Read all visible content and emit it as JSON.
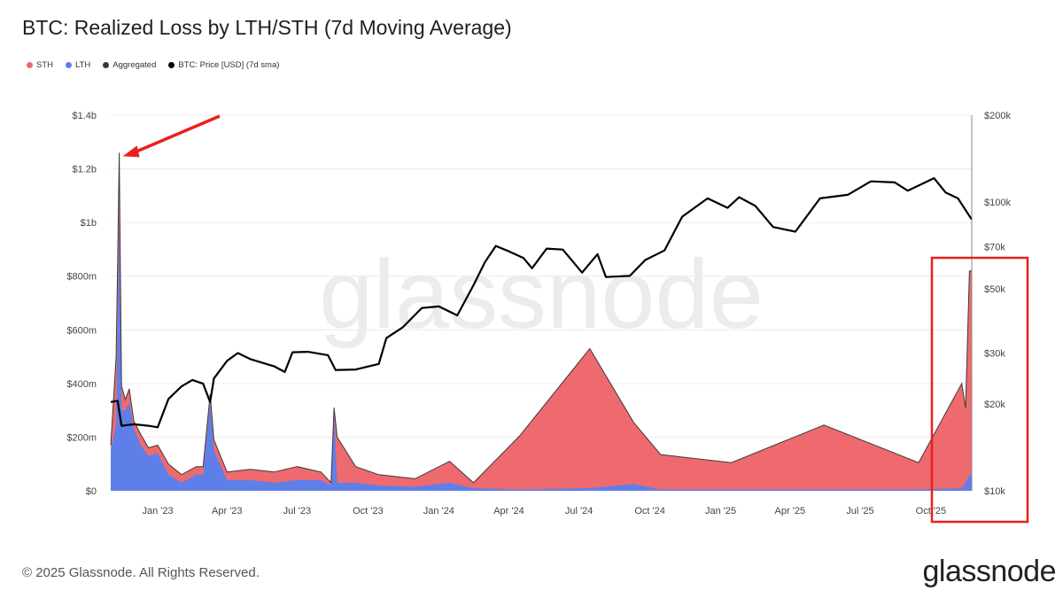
{
  "colors": {
    "sth": "#ee6a6e",
    "lth": "#5f7fe8",
    "aggregated": "#3a3a3a",
    "price": "#000000",
    "annotation": "#e8211c",
    "grid": "#ececec"
  },
  "footer": {
    "copyright": "© 2025 Glassnode. All Rights Reserved.",
    "brand": "glassnode"
  },
  "watermark": "glassnode",
  "chart_data": {
    "type": "area",
    "title": "BTC: Realized Loss by LTH/STH (7d Moving Average)",
    "legend_position": "top-left",
    "grid": true,
    "legend": [
      {
        "name": "STH",
        "color": "#ee6a6e"
      },
      {
        "name": "LTH",
        "color": "#5f7fe8"
      },
      {
        "name": "Aggregated",
        "color": "#3a3a3a"
      },
      {
        "name": "BTC: Price [USD] (7d sma)",
        "color": "#000000"
      }
    ],
    "x_range": [
      "2022-11-01",
      "2025-11-23"
    ],
    "x_ticks": [
      {
        "date": "2023-01-01",
        "label": "Jan '23"
      },
      {
        "date": "2023-04-01",
        "label": "Apr '23"
      },
      {
        "date": "2023-07-01",
        "label": "Jul '23"
      },
      {
        "date": "2023-10-01",
        "label": "Oct '23"
      },
      {
        "date": "2024-01-01",
        "label": "Jan '24"
      },
      {
        "date": "2024-04-01",
        "label": "Apr '24"
      },
      {
        "date": "2024-07-01",
        "label": "Jul '24"
      },
      {
        "date": "2024-10-01",
        "label": "Oct '24"
      },
      {
        "date": "2025-01-01",
        "label": "Jan '25"
      },
      {
        "date": "2025-04-01",
        "label": "Apr '25"
      },
      {
        "date": "2025-07-01",
        "label": "Jul '25"
      },
      {
        "date": "2025-10-01",
        "label": "Oct '25"
      }
    ],
    "y_left": {
      "range": [
        0,
        1400000000
      ],
      "ticks": [
        {
          "value": 0,
          "label": "$0"
        },
        {
          "value": 200000000,
          "label": "$200m"
        },
        {
          "value": 400000000,
          "label": "$400m"
        },
        {
          "value": 600000000,
          "label": "$600m"
        },
        {
          "value": 800000000,
          "label": "$800m"
        },
        {
          "value": 1000000000,
          "label": "$1b"
        },
        {
          "value": 1200000000,
          "label": "$1.2b"
        },
        {
          "value": 1400000000,
          "label": "$1.4b"
        }
      ]
    },
    "y_right": {
      "scale": "log",
      "range": [
        10000,
        200000
      ],
      "ticks": [
        {
          "value": 10000,
          "label": "$10k"
        },
        {
          "value": 20000,
          "label": "$20k"
        },
        {
          "value": 30000,
          "label": "$30k"
        },
        {
          "value": 50000,
          "label": "$50k"
        },
        {
          "value": 70000,
          "label": "$70k"
        },
        {
          "value": 100000,
          "label": "$100k"
        },
        {
          "value": 200000,
          "label": "$200k"
        }
      ]
    },
    "series": [
      {
        "name": "LTH",
        "points": [
          [
            "2022-11-01",
            150000000
          ],
          [
            "2022-11-08",
            250000000
          ],
          [
            "2022-11-10",
            600000000
          ],
          [
            "2022-11-12",
            1000000000
          ],
          [
            "2022-11-15",
            300000000
          ],
          [
            "2022-11-20",
            300000000
          ],
          [
            "2022-11-25",
            330000000
          ],
          [
            "2022-12-01",
            230000000
          ],
          [
            "2022-12-10",
            170000000
          ],
          [
            "2022-12-20",
            130000000
          ],
          [
            "2023-01-01",
            140000000
          ],
          [
            "2023-01-15",
            60000000
          ],
          [
            "2023-02-01",
            30000000
          ],
          [
            "2023-02-20",
            60000000
          ],
          [
            "2023-03-01",
            60000000
          ],
          [
            "2023-03-10",
            330000000
          ],
          [
            "2023-03-15",
            150000000
          ],
          [
            "2023-04-01",
            40000000
          ],
          [
            "2023-05-01",
            40000000
          ],
          [
            "2023-06-01",
            30000000
          ],
          [
            "2023-07-01",
            40000000
          ],
          [
            "2023-08-01",
            40000000
          ],
          [
            "2023-08-14",
            20000000
          ],
          [
            "2023-08-18",
            300000000
          ],
          [
            "2023-08-22",
            30000000
          ],
          [
            "2023-09-15",
            30000000
          ],
          [
            "2023-10-15",
            20000000
          ],
          [
            "2023-12-01",
            15000000
          ],
          [
            "2024-01-15",
            30000000
          ],
          [
            "2024-02-15",
            10000000
          ],
          [
            "2024-04-15",
            5000000
          ],
          [
            "2024-07-15",
            10000000
          ],
          [
            "2024-09-10",
            25000000
          ],
          [
            "2024-10-15",
            5000000
          ],
          [
            "2025-01-15",
            5000000
          ],
          [
            "2025-05-15",
            5000000
          ],
          [
            "2025-09-15",
            5000000
          ],
          [
            "2025-11-10",
            10000000
          ],
          [
            "2025-11-15",
            30000000
          ],
          [
            "2025-11-20",
            60000000
          ],
          [
            "2025-11-23",
            60000000
          ]
        ]
      },
      {
        "name": "STH",
        "points": [
          [
            "2022-11-01",
            20000000
          ],
          [
            "2022-11-08",
            250000000
          ],
          [
            "2022-11-10",
            250000000
          ],
          [
            "2022-11-12",
            260000000
          ],
          [
            "2022-11-15",
            90000000
          ],
          [
            "2022-11-20",
            40000000
          ],
          [
            "2022-11-25",
            50000000
          ],
          [
            "2022-12-01",
            30000000
          ],
          [
            "2022-12-10",
            40000000
          ],
          [
            "2022-12-20",
            30000000
          ],
          [
            "2023-01-01",
            30000000
          ],
          [
            "2023-01-15",
            40000000
          ],
          [
            "2023-02-01",
            30000000
          ],
          [
            "2023-02-20",
            30000000
          ],
          [
            "2023-03-01",
            30000000
          ],
          [
            "2023-03-10",
            30000000
          ],
          [
            "2023-03-15",
            40000000
          ],
          [
            "2023-04-01",
            30000000
          ],
          [
            "2023-05-01",
            40000000
          ],
          [
            "2023-06-01",
            40000000
          ],
          [
            "2023-07-01",
            50000000
          ],
          [
            "2023-08-01",
            30000000
          ],
          [
            "2023-08-14",
            10000000
          ],
          [
            "2023-08-18",
            10000000
          ],
          [
            "2023-08-22",
            170000000
          ],
          [
            "2023-09-15",
            60000000
          ],
          [
            "2023-10-15",
            40000000
          ],
          [
            "2023-12-01",
            30000000
          ],
          [
            "2024-01-15",
            80000000
          ],
          [
            "2024-02-15",
            20000000
          ],
          [
            "2024-04-15",
            200000000
          ],
          [
            "2024-07-15",
            520000000
          ],
          [
            "2024-09-10",
            230000000
          ],
          [
            "2024-10-15",
            130000000
          ],
          [
            "2025-01-15",
            100000000
          ],
          [
            "2025-05-15",
            240000000
          ],
          [
            "2025-09-15",
            100000000
          ],
          [
            "2025-11-10",
            390000000
          ],
          [
            "2025-11-15",
            280000000
          ],
          [
            "2025-11-20",
            760000000
          ],
          [
            "2025-11-23",
            760000000
          ]
        ]
      },
      {
        "name": "Aggregated",
        "points": [
          [
            "2022-11-01",
            170000000
          ],
          [
            "2022-11-08",
            500000000
          ],
          [
            "2022-11-10",
            850000000
          ],
          [
            "2022-11-12",
            1260000000
          ],
          [
            "2022-11-15",
            390000000
          ],
          [
            "2022-11-20",
            340000000
          ],
          [
            "2022-11-25",
            380000000
          ],
          [
            "2022-12-01",
            260000000
          ],
          [
            "2022-12-10",
            210000000
          ],
          [
            "2022-12-20",
            160000000
          ],
          [
            "2023-01-01",
            170000000
          ],
          [
            "2023-01-15",
            100000000
          ],
          [
            "2023-02-01",
            60000000
          ],
          [
            "2023-02-20",
            90000000
          ],
          [
            "2023-03-01",
            90000000
          ],
          [
            "2023-03-10",
            360000000
          ],
          [
            "2023-03-15",
            190000000
          ],
          [
            "2023-04-01",
            70000000
          ],
          [
            "2023-05-01",
            80000000
          ],
          [
            "2023-06-01",
            70000000
          ],
          [
            "2023-07-01",
            90000000
          ],
          [
            "2023-08-01",
            70000000
          ],
          [
            "2023-08-14",
            30000000
          ],
          [
            "2023-08-18",
            310000000
          ],
          [
            "2023-08-22",
            200000000
          ],
          [
            "2023-09-15",
            90000000
          ],
          [
            "2023-10-15",
            60000000
          ],
          [
            "2023-12-01",
            45000000
          ],
          [
            "2024-01-15",
            110000000
          ],
          [
            "2024-02-15",
            30000000
          ],
          [
            "2024-04-15",
            205000000
          ],
          [
            "2024-07-15",
            530000000
          ],
          [
            "2024-09-10",
            255000000
          ],
          [
            "2024-10-15",
            135000000
          ],
          [
            "2025-01-15",
            105000000
          ],
          [
            "2025-05-15",
            245000000
          ],
          [
            "2025-09-15",
            105000000
          ],
          [
            "2025-11-10",
            400000000
          ],
          [
            "2025-11-15",
            310000000
          ],
          [
            "2025-11-20",
            820000000
          ],
          [
            "2025-11-23",
            820000000
          ]
        ]
      },
      {
        "name": "BTC: Price [USD] (7d sma)",
        "axis": "right",
        "points": [
          [
            "2022-11-01",
            20300
          ],
          [
            "2022-11-10",
            20500
          ],
          [
            "2022-11-15",
            16800
          ],
          [
            "2022-12-01",
            17000
          ],
          [
            "2022-12-20",
            16800
          ],
          [
            "2023-01-01",
            16600
          ],
          [
            "2023-01-15",
            20800
          ],
          [
            "2023-02-01",
            23000
          ],
          [
            "2023-02-15",
            24200
          ],
          [
            "2023-03-01",
            23500
          ],
          [
            "2023-03-10",
            20300
          ],
          [
            "2023-03-15",
            24500
          ],
          [
            "2023-04-01",
            28200
          ],
          [
            "2023-04-15",
            30000
          ],
          [
            "2023-05-01",
            28600
          ],
          [
            "2023-06-01",
            27000
          ],
          [
            "2023-06-15",
            25800
          ],
          [
            "2023-06-25",
            30200
          ],
          [
            "2023-07-15",
            30300
          ],
          [
            "2023-08-10",
            29500
          ],
          [
            "2023-08-20",
            26200
          ],
          [
            "2023-09-15",
            26300
          ],
          [
            "2023-10-15",
            27500
          ],
          [
            "2023-10-25",
            33800
          ],
          [
            "2023-11-15",
            36800
          ],
          [
            "2023-12-10",
            43000
          ],
          [
            "2024-01-01",
            43500
          ],
          [
            "2024-01-25",
            40500
          ],
          [
            "2024-02-15",
            51500
          ],
          [
            "2024-03-01",
            62000
          ],
          [
            "2024-03-15",
            70500
          ],
          [
            "2024-04-01",
            67500
          ],
          [
            "2024-04-20",
            64000
          ],
          [
            "2024-05-01",
            59000
          ],
          [
            "2024-05-20",
            69000
          ],
          [
            "2024-06-10",
            68500
          ],
          [
            "2024-07-05",
            57000
          ],
          [
            "2024-07-25",
            66000
          ],
          [
            "2024-08-05",
            55000
          ],
          [
            "2024-09-05",
            55500
          ],
          [
            "2024-09-25",
            63000
          ],
          [
            "2024-10-20",
            68000
          ],
          [
            "2024-11-12",
            89000
          ],
          [
            "2024-12-15",
            103000
          ],
          [
            "2025-01-10",
            95500
          ],
          [
            "2025-01-25",
            104000
          ],
          [
            "2025-02-15",
            97000
          ],
          [
            "2025-03-10",
            82000
          ],
          [
            "2025-04-08",
            79000
          ],
          [
            "2025-05-10",
            103000
          ],
          [
            "2025-06-15",
            106000
          ],
          [
            "2025-07-15",
            118000
          ],
          [
            "2025-08-15",
            117000
          ],
          [
            "2025-09-01",
            109500
          ],
          [
            "2025-10-05",
            121000
          ],
          [
            "2025-10-20",
            108000
          ],
          [
            "2025-11-05",
            103000
          ],
          [
            "2025-11-23",
            87000
          ]
        ]
      }
    ]
  }
}
